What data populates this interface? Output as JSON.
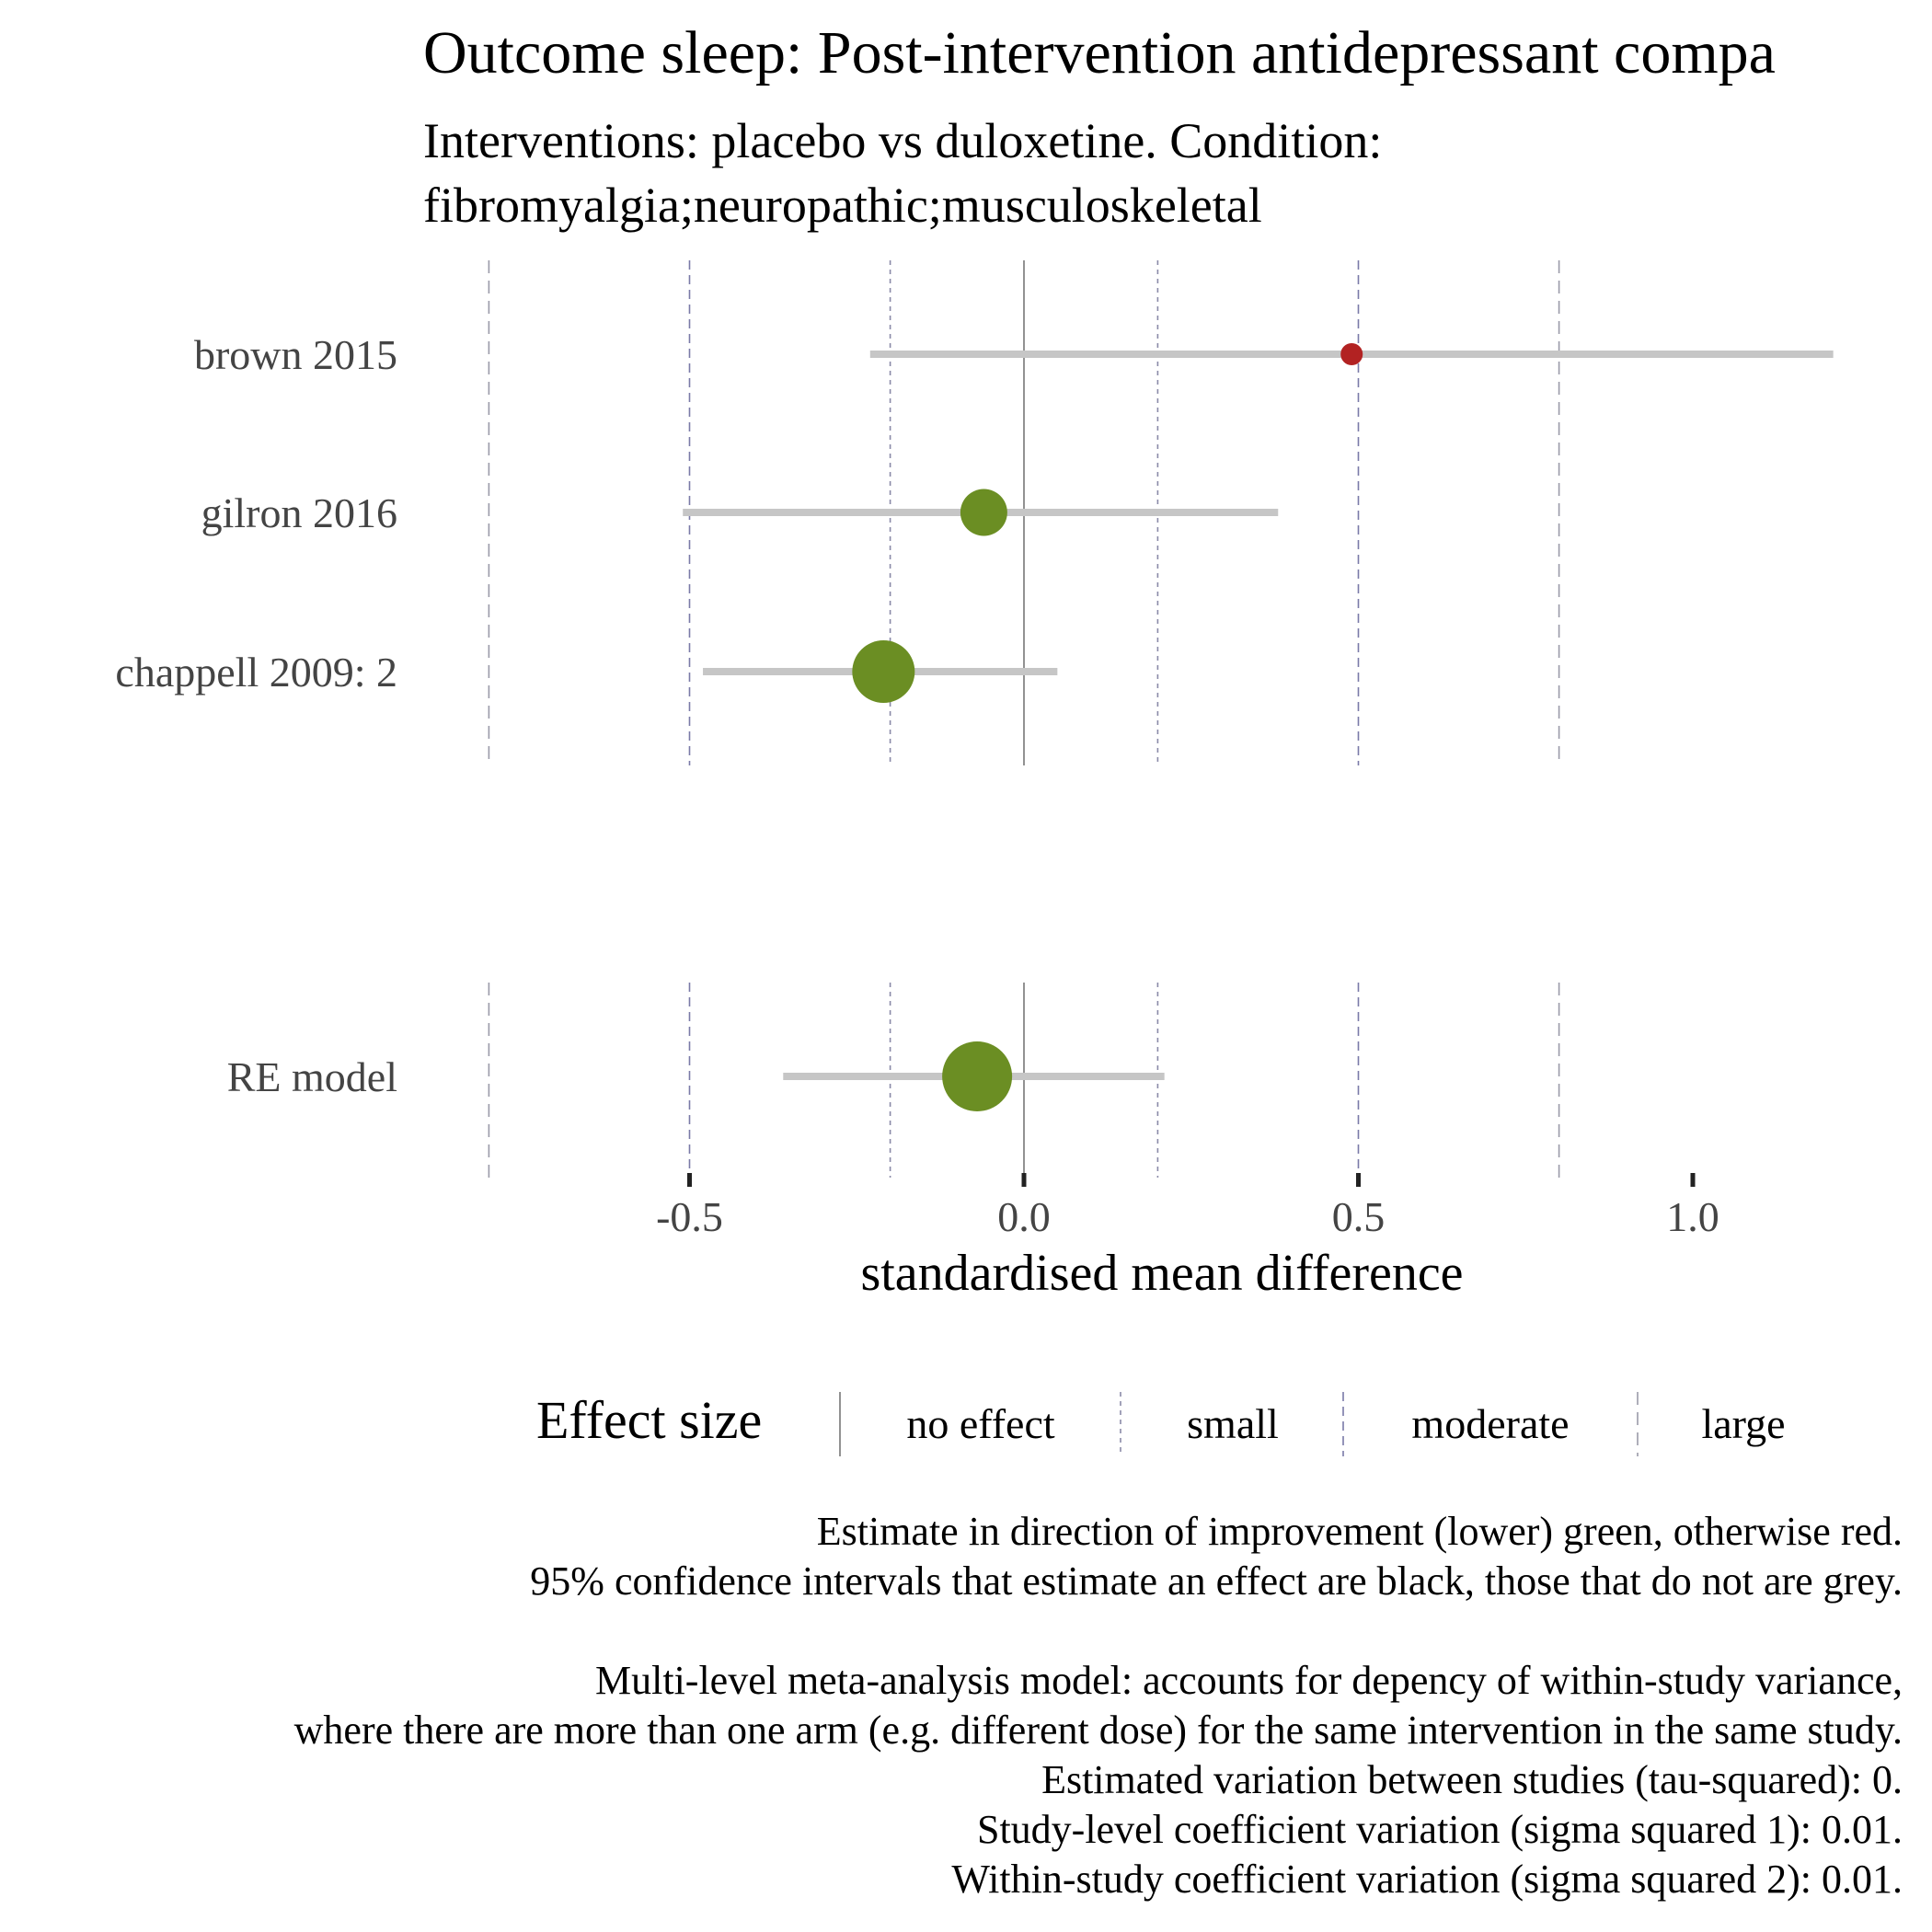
{
  "chart_data": {
    "type": "forest",
    "title": "Outcome sleep: Post-intervention antidepressant compa",
    "subtitle_lines": [
      "Interventions: placebo vs duloxetine. Condition:",
      "fibromyalgia;neuropathic;musculoskeletal"
    ],
    "xlabel": "standardised mean difference",
    "xlim": [
      -0.8,
      1.3
    ],
    "xticks": [
      -0.5,
      0.0,
      0.5,
      1.0
    ],
    "xtick_labels": [
      "-0.5",
      "0.0",
      "0.5",
      "1.0"
    ],
    "reference_lines": {
      "no_effect": [
        0.0
      ],
      "small": [
        -0.2,
        0.2
      ],
      "moderate": [
        -0.5,
        0.5
      ],
      "large": [
        -0.8,
        0.8
      ]
    },
    "studies": [
      {
        "label": "brown 2015",
        "estimate": 0.49,
        "ci_low": -0.23,
        "ci_high": 1.21,
        "weight": 0.1,
        "color": "#b22222",
        "ci_color": "#c6c6c6"
      },
      {
        "label": "gilron 2016",
        "estimate": -0.06,
        "ci_low": -0.51,
        "ci_high": 0.38,
        "weight": 0.45,
        "color": "#6b8e23",
        "ci_color": "#c6c6c6"
      },
      {
        "label": "chappell 2009: 2",
        "estimate": -0.21,
        "ci_low": -0.48,
        "ci_high": 0.05,
        "weight": 0.8,
        "color": "#6b8e23",
        "ci_color": "#c6c6c6"
      }
    ],
    "summary": {
      "label": "RE model",
      "estimate": -0.07,
      "ci_low": -0.36,
      "ci_high": 0.21,
      "weight": 1.0,
      "color": "#6b8e23",
      "ci_color": "#c6c6c6"
    },
    "legend": {
      "title": "Effect size",
      "items": [
        "no effect",
        "small",
        "moderate",
        "large"
      ]
    }
  },
  "caption": {
    "block1": [
      "Estimate in direction of improvement (lower) green, otherwise red.",
      "95% confidence intervals that estimate an effect are black, those that do not are grey."
    ],
    "block2": [
      "Multi-level meta-analysis model: accounts for depency of within-study variance,",
      "where there are more than one arm (e.g. different dose) for the same intervention in the same study.",
      "Estimated variation between studies (tau-squared): 0.",
      "Study-level coefficient variation (sigma squared 1): 0.01.",
      "Within-study coefficient variation (sigma squared 2): 0.01."
    ]
  }
}
